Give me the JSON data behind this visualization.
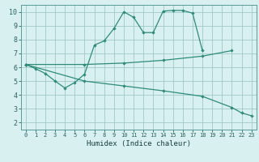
{
  "curve1_x": [
    0,
    1,
    2,
    3,
    4,
    5,
    6,
    7,
    8,
    9,
    10,
    11,
    12,
    13,
    14,
    15,
    16,
    17,
    18
  ],
  "curve1_y": [
    6.2,
    5.9,
    5.55,
    5.0,
    4.5,
    4.9,
    5.5,
    7.6,
    7.9,
    8.8,
    10.0,
    9.6,
    8.5,
    8.5,
    10.05,
    10.1,
    10.1,
    9.9,
    7.2
  ],
  "curve2_x": [
    0,
    6,
    10,
    14,
    18,
    21
  ],
  "curve2_y": [
    6.2,
    6.2,
    6.3,
    6.5,
    6.8,
    7.2
  ],
  "curve3_x": [
    0,
    6,
    10,
    14,
    18,
    21,
    22,
    23
  ],
  "curve3_y": [
    6.2,
    5.0,
    4.65,
    4.3,
    3.9,
    3.1,
    2.7,
    2.5
  ],
  "color": "#2e8b7a",
  "bg_color": "#d8f0f0",
  "grid_color": "#a0c8c8",
  "xlabel": "Humidex (Indice chaleur)",
  "xlim": [
    -0.5,
    23.5
  ],
  "ylim": [
    1.5,
    10.5
  ],
  "xticks": [
    0,
    1,
    2,
    3,
    4,
    5,
    6,
    7,
    8,
    9,
    10,
    11,
    12,
    13,
    14,
    15,
    16,
    17,
    18,
    19,
    20,
    21,
    22,
    23
  ],
  "yticks": [
    2,
    3,
    4,
    5,
    6,
    7,
    8,
    9,
    10
  ],
  "figwidth": 3.2,
  "figheight": 2.0,
  "dpi": 100
}
